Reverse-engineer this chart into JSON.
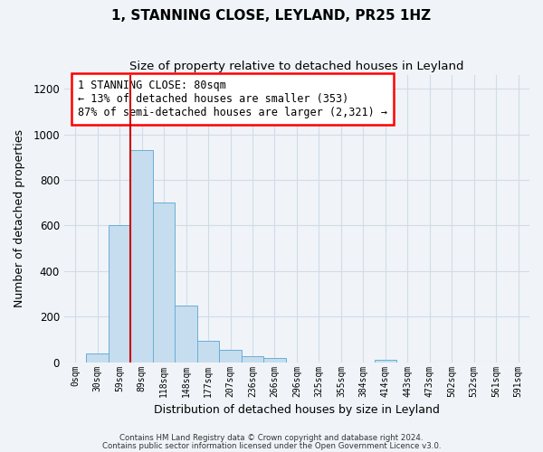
{
  "title": "1, STANNING CLOSE, LEYLAND, PR25 1HZ",
  "subtitle": "Size of property relative to detached houses in Leyland",
  "xlabel": "Distribution of detached houses by size in Leyland",
  "ylabel": "Number of detached properties",
  "bar_labels": [
    "0sqm",
    "30sqm",
    "59sqm",
    "89sqm",
    "118sqm",
    "148sqm",
    "177sqm",
    "207sqm",
    "236sqm",
    "266sqm",
    "296sqm",
    "325sqm",
    "355sqm",
    "384sqm",
    "414sqm",
    "443sqm",
    "473sqm",
    "502sqm",
    "532sqm",
    "561sqm",
    "591sqm"
  ],
  "bar_values": [
    0,
    38,
    600,
    930,
    700,
    248,
    95,
    55,
    28,
    18,
    0,
    0,
    0,
    0,
    10,
    0,
    0,
    0,
    0,
    0,
    0
  ],
  "bar_color": "#c5ddef",
  "bar_edge_color": "#6aaed6",
  "vline_color": "#cc0000",
  "ylim": [
    0,
    1260
  ],
  "yticks": [
    0,
    200,
    400,
    600,
    800,
    1000,
    1200
  ],
  "annotation_title": "1 STANNING CLOSE: 80sqm",
  "annotation_line1": "← 13% of detached houses are smaller (353)",
  "annotation_line2": "87% of semi-detached houses are larger (2,321) →",
  "footer_line1": "Contains HM Land Registry data © Crown copyright and database right 2024.",
  "footer_line2": "Contains public sector information licensed under the Open Government Licence v3.0.",
  "bg_color": "#f0f4f8",
  "grid_color": "#d0dce8"
}
